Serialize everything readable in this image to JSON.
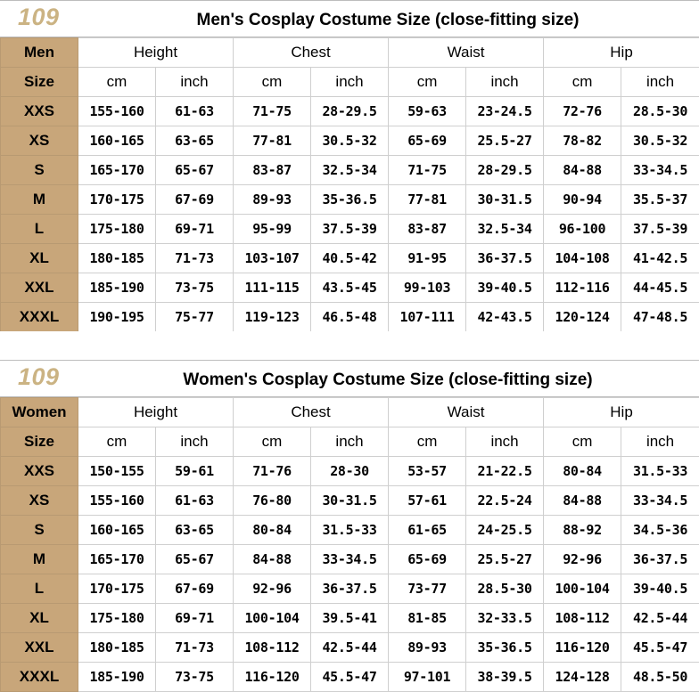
{
  "men": {
    "badge": "109",
    "title": "Men's Cosplay Costume Size (close-fitting size)",
    "header_label": "Men",
    "size_label": "Size",
    "groups": [
      "Height",
      "Chest",
      "Waist",
      "Hip"
    ],
    "units": [
      "cm",
      "inch",
      "cm",
      "inch",
      "cm",
      "inch",
      "cm",
      "inch"
    ],
    "rows": [
      {
        "size": "XXS",
        "values": [
          "155-160",
          "61-63",
          "71-75",
          "28-29.5",
          "59-63",
          "23-24.5",
          "72-76",
          "28.5-30"
        ]
      },
      {
        "size": "XS",
        "values": [
          "160-165",
          "63-65",
          "77-81",
          "30.5-32",
          "65-69",
          "25.5-27",
          "78-82",
          "30.5-32"
        ]
      },
      {
        "size": "S",
        "values": [
          "165-170",
          "65-67",
          "83-87",
          "32.5-34",
          "71-75",
          "28-29.5",
          "84-88",
          "33-34.5"
        ]
      },
      {
        "size": "M",
        "values": [
          "170-175",
          "67-69",
          "89-93",
          "35-36.5",
          "77-81",
          "30-31.5",
          "90-94",
          "35.5-37"
        ]
      },
      {
        "size": "L",
        "values": [
          "175-180",
          "69-71",
          "95-99",
          "37.5-39",
          "83-87",
          "32.5-34",
          "96-100",
          "37.5-39"
        ]
      },
      {
        "size": "XL",
        "values": [
          "180-185",
          "71-73",
          "103-107",
          "40.5-42",
          "91-95",
          "36-37.5",
          "104-108",
          "41-42.5"
        ]
      },
      {
        "size": "XXL",
        "values": [
          "185-190",
          "73-75",
          "111-115",
          "43.5-45",
          "99-103",
          "39-40.5",
          "112-116",
          "44-45.5"
        ]
      },
      {
        "size": "XXXL",
        "values": [
          "190-195",
          "75-77",
          "119-123",
          "46.5-48",
          "107-111",
          "42-43.5",
          "120-124",
          "47-48.5"
        ]
      }
    ]
  },
  "women": {
    "badge": "109",
    "title": "Women's Cosplay Costume Size (close-fitting size)",
    "header_label": "Women",
    "size_label": "Size",
    "groups": [
      "Height",
      "Chest",
      "Waist",
      "Hip"
    ],
    "units": [
      "cm",
      "inch",
      "cm",
      "inch",
      "cm",
      "inch",
      "cm",
      "inch"
    ],
    "rows": [
      {
        "size": "XXS",
        "values": [
          "150-155",
          "59-61",
          "71-76",
          "28-30",
          "53-57",
          "21-22.5",
          "80-84",
          "31.5-33"
        ]
      },
      {
        "size": "XS",
        "values": [
          "155-160",
          "61-63",
          "76-80",
          "30-31.5",
          "57-61",
          "22.5-24",
          "84-88",
          "33-34.5"
        ]
      },
      {
        "size": "S",
        "values": [
          "160-165",
          "63-65",
          "80-84",
          "31.5-33",
          "61-65",
          "24-25.5",
          "88-92",
          "34.5-36"
        ]
      },
      {
        "size": "M",
        "values": [
          "165-170",
          "65-67",
          "84-88",
          "33-34.5",
          "65-69",
          "25.5-27",
          "92-96",
          "36-37.5"
        ]
      },
      {
        "size": "L",
        "values": [
          "170-175",
          "67-69",
          "92-96",
          "36-37.5",
          "73-77",
          "28.5-30",
          "100-104",
          "39-40.5"
        ]
      },
      {
        "size": "XL",
        "values": [
          "175-180",
          "69-71",
          "100-104",
          "39.5-41",
          "81-85",
          "32-33.5",
          "108-112",
          "42.5-44"
        ]
      },
      {
        "size": "XXL",
        "values": [
          "180-185",
          "71-73",
          "108-112",
          "42.5-44",
          "89-93",
          "35-36.5",
          "116-120",
          "45.5-47"
        ]
      },
      {
        "size": "XXXL",
        "values": [
          "185-190",
          "73-75",
          "116-120",
          "45.5-47",
          "97-101",
          "38-39.5",
          "124-128",
          "48.5-50"
        ]
      }
    ]
  }
}
